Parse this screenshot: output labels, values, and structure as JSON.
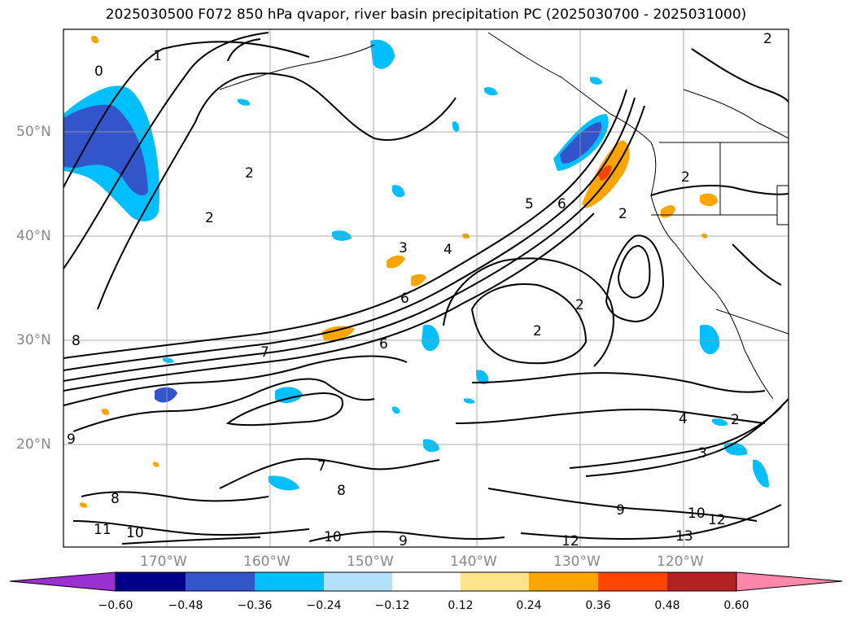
{
  "title": "2025030500 F072 850 hPa qvapor, river basin precipitation PC (2025030700 - 2025031000)",
  "lat_labels": [
    "50°N",
    "40°N",
    "30°N",
    "20°N"
  ],
  "lon_labels": [
    "170°W",
    "160°W",
    "150°W",
    "140°W",
    "130°W",
    "120°W"
  ],
  "colorbar": {
    "extend": "both",
    "under_color": "#9b30d0",
    "over_color": "#ff88aa",
    "bins": [
      {
        "color": "#00008b"
      },
      {
        "color": "#3355cc"
      },
      {
        "color": "#00bfff"
      },
      {
        "color": "#b3e0fa"
      },
      {
        "color": "#ffffff"
      },
      {
        "color": "#fde38a"
      },
      {
        "color": "#ffa500"
      },
      {
        "color": "#ff4500"
      },
      {
        "color": "#b22222"
      }
    ],
    "tick_labels": [
      "−0.60",
      "−0.48",
      "−0.36",
      "−0.24",
      "−0.12",
      "0.12",
      "0.24",
      "0.36",
      "0.48",
      "0.60"
    ]
  },
  "contour_labels": [
    "0",
    "1",
    "2",
    "2",
    "2",
    "2",
    "2",
    "2",
    "2",
    "2",
    "3",
    "4",
    "5",
    "6",
    "6",
    "6",
    "7",
    "7",
    "8",
    "8",
    "8",
    "9",
    "9",
    "9",
    "10",
    "10",
    "10",
    "11",
    "12",
    "12",
    "13",
    "3",
    "4"
  ],
  "colors": {
    "neg_strong": "#3355cc",
    "neg_mid": "#00bfff",
    "neg_weak": "#b3e0fa",
    "pos_weak": "#fde38a",
    "pos_mid": "#ffa500",
    "pos_strong": "#ff4500"
  }
}
